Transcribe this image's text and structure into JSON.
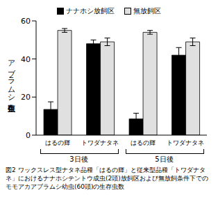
{
  "chart_data": {
    "type": "bar",
    "y_label": "アブラムシ生存虫数",
    "categories": [
      "はるの輝",
      "トワダナタネ",
      "はるの輝",
      "トワダナタネ"
    ],
    "group_labels": [
      "3日後",
      "5日後"
    ],
    "series": [
      {
        "name": "ナナホシ放飼区",
        "color": "#000000",
        "values": [
          13.5,
          48,
          8.5,
          42
        ],
        "error": [
          4,
          2,
          3,
          4
        ]
      },
      {
        "name": "無放飼区",
        "color": "#e0e0e0",
        "values": [
          55,
          49,
          54,
          49
        ],
        "error": [
          1,
          2,
          1,
          2
        ]
      }
    ],
    "ylim": [
      0,
      60
    ],
    "yticks": [
      0,
      20,
      40,
      60
    ],
    "legend": "top",
    "caption": "図2 ワックスレス型ナタネ品種「はるの輝」と従来型品種「トワダナタネ」におけるナナホシテントウ成虫(2頭)放飼区および無放飼条件下でのモモアカアブラムシ幼虫(60頭)の生存虫数"
  }
}
